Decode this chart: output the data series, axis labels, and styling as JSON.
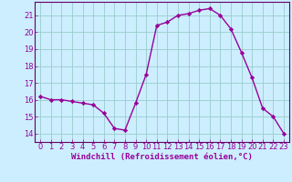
{
  "x": [
    0,
    1,
    2,
    3,
    4,
    5,
    6,
    7,
    8,
    9,
    10,
    11,
    12,
    13,
    14,
    15,
    16,
    17,
    18,
    19,
    20,
    21,
    22,
    23
  ],
  "y": [
    16.2,
    16.0,
    16.0,
    15.9,
    15.8,
    15.7,
    15.2,
    14.3,
    14.2,
    15.8,
    17.5,
    20.4,
    20.6,
    21.0,
    21.1,
    21.3,
    21.4,
    21.0,
    20.2,
    18.8,
    17.3,
    15.5,
    15.0,
    14.0
  ],
  "line_color": "#990099",
  "marker": "D",
  "markersize": 2.2,
  "linewidth": 1.0,
  "bg_color": "#cceeff",
  "grid_color": "#99cccc",
  "axis_color": "#660066",
  "tick_color": "#990099",
  "xlabel": "Windchill (Refroidissement éolien,°C)",
  "xlabel_fontsize": 6.5,
  "tick_fontsize": 6.0,
  "ylim": [
    13.5,
    21.8
  ],
  "yticks": [
    14,
    15,
    16,
    17,
    18,
    19,
    20,
    21
  ],
  "xlim": [
    -0.5,
    23.5
  ]
}
